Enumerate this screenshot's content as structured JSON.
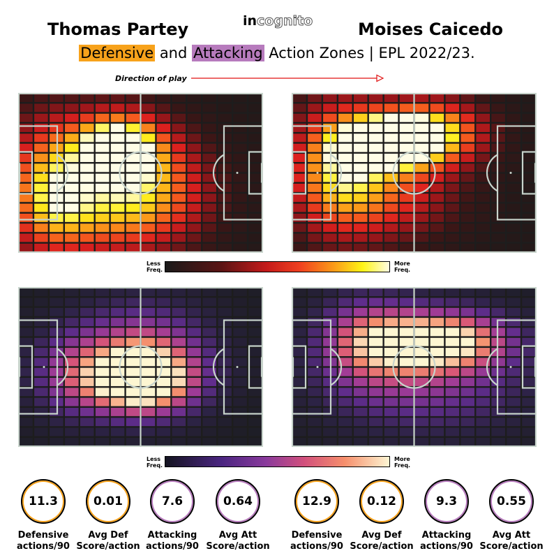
{
  "header": {
    "player_left": "Thomas Partey",
    "player_right": "Moises Caicedo",
    "brand_a": "in",
    "brand_b": "cognito",
    "subtitle_def": "Defensive",
    "subtitle_and": "and",
    "subtitle_att": "Attacking",
    "subtitle_rest": "Action Zones | EPL 2022/23.",
    "direction_label": "Direction of play"
  },
  "legend": {
    "less": "Less",
    "more": "More",
    "freq": "Freq."
  },
  "colors": {
    "defensive_highlight": "#f7a21b",
    "attacking_highlight": "#b77bbd",
    "pitch_lines": "#c8d4cc",
    "pitch_bg": "#1d1d1d",
    "arrow": "#e01010"
  },
  "chart_data": [
    {
      "type": "heatmap",
      "player": "Thomas Partey",
      "metric": "defensive",
      "colormap": "inferno-like",
      "grid": {
        "cols": 16,
        "rows": 16
      },
      "hotspots": [
        {
          "cx": 0.4,
          "cy": 0.32,
          "sx": 0.13,
          "sy": 0.15,
          "w": 1.0
        },
        {
          "cx": 0.12,
          "cy": 0.55,
          "sx": 0.12,
          "sy": 0.3,
          "w": 0.65
        },
        {
          "cx": 0.55,
          "cy": 0.6,
          "sx": 0.18,
          "sy": 0.25,
          "w": 0.6
        },
        {
          "cx": 0.3,
          "cy": 0.75,
          "sx": 0.2,
          "sy": 0.2,
          "w": 0.5
        }
      ],
      "base": 0.05
    },
    {
      "type": "heatmap",
      "player": "Moises Caicedo",
      "metric": "defensive",
      "colormap": "inferno-like",
      "grid": {
        "cols": 16,
        "rows": 16
      },
      "hotspots": [
        {
          "cx": 0.38,
          "cy": 0.3,
          "sx": 0.13,
          "sy": 0.12,
          "w": 1.0
        },
        {
          "cx": 0.58,
          "cy": 0.25,
          "sx": 0.15,
          "sy": 0.15,
          "w": 0.85
        },
        {
          "cx": 0.18,
          "cy": 0.45,
          "sx": 0.14,
          "sy": 0.3,
          "w": 0.7
        },
        {
          "cx": 0.4,
          "cy": 0.65,
          "sx": 0.2,
          "sy": 0.2,
          "w": 0.45
        }
      ],
      "base": 0.05
    },
    {
      "type": "heatmap",
      "player": "Thomas Partey",
      "metric": "attacking",
      "colormap": "magma-like",
      "grid": {
        "cols": 16,
        "rows": 16
      },
      "hotspots": [
        {
          "cx": 0.5,
          "cy": 0.6,
          "sx": 0.16,
          "sy": 0.15,
          "w": 1.0
        },
        {
          "cx": 0.5,
          "cy": 0.4,
          "sx": 0.2,
          "sy": 0.22,
          "w": 0.6
        },
        {
          "cx": 0.2,
          "cy": 0.55,
          "sx": 0.12,
          "sy": 0.2,
          "w": 0.35
        }
      ],
      "base": 0.04
    },
    {
      "type": "heatmap",
      "player": "Moises Caicedo",
      "metric": "attacking",
      "colormap": "magma-like",
      "grid": {
        "cols": 16,
        "rows": 16
      },
      "hotspots": [
        {
          "cx": 0.62,
          "cy": 0.33,
          "sx": 0.2,
          "sy": 0.14,
          "w": 1.0
        },
        {
          "cx": 0.3,
          "cy": 0.33,
          "sx": 0.15,
          "sy": 0.2,
          "w": 0.6
        },
        {
          "cx": 0.55,
          "cy": 0.65,
          "sx": 0.3,
          "sy": 0.2,
          "w": 0.4
        }
      ],
      "base": 0.04
    }
  ],
  "stats": [
    {
      "player": "Thomas Partey",
      "value": "11.3",
      "label1": "Defensive",
      "label2": "actions/90",
      "kind": "def"
    },
    {
      "player": "Thomas Partey",
      "value": "0.01",
      "label1": "Avg Def",
      "label2": "Score/action",
      "kind": "def"
    },
    {
      "player": "Thomas Partey",
      "value": "7.6",
      "label1": "Attacking",
      "label2": "actions/90",
      "kind": "att"
    },
    {
      "player": "Thomas Partey",
      "value": "0.64",
      "label1": "Avg Att",
      "label2": "Score/action",
      "kind": "att"
    },
    {
      "player": "Moises Caicedo",
      "value": "12.9",
      "label1": "Defensive",
      "label2": "actions/90",
      "kind": "def"
    },
    {
      "player": "Moises Caicedo",
      "value": "0.12",
      "label1": "Avg Def",
      "label2": "Score/action",
      "kind": "def"
    },
    {
      "player": "Moises Caicedo",
      "value": "9.3",
      "label1": "Attacking",
      "label2": "actions/90",
      "kind": "att"
    },
    {
      "player": "Moises Caicedo",
      "value": "0.55",
      "label1": "Avg Att",
      "label2": "Score/action",
      "kind": "att"
    }
  ]
}
